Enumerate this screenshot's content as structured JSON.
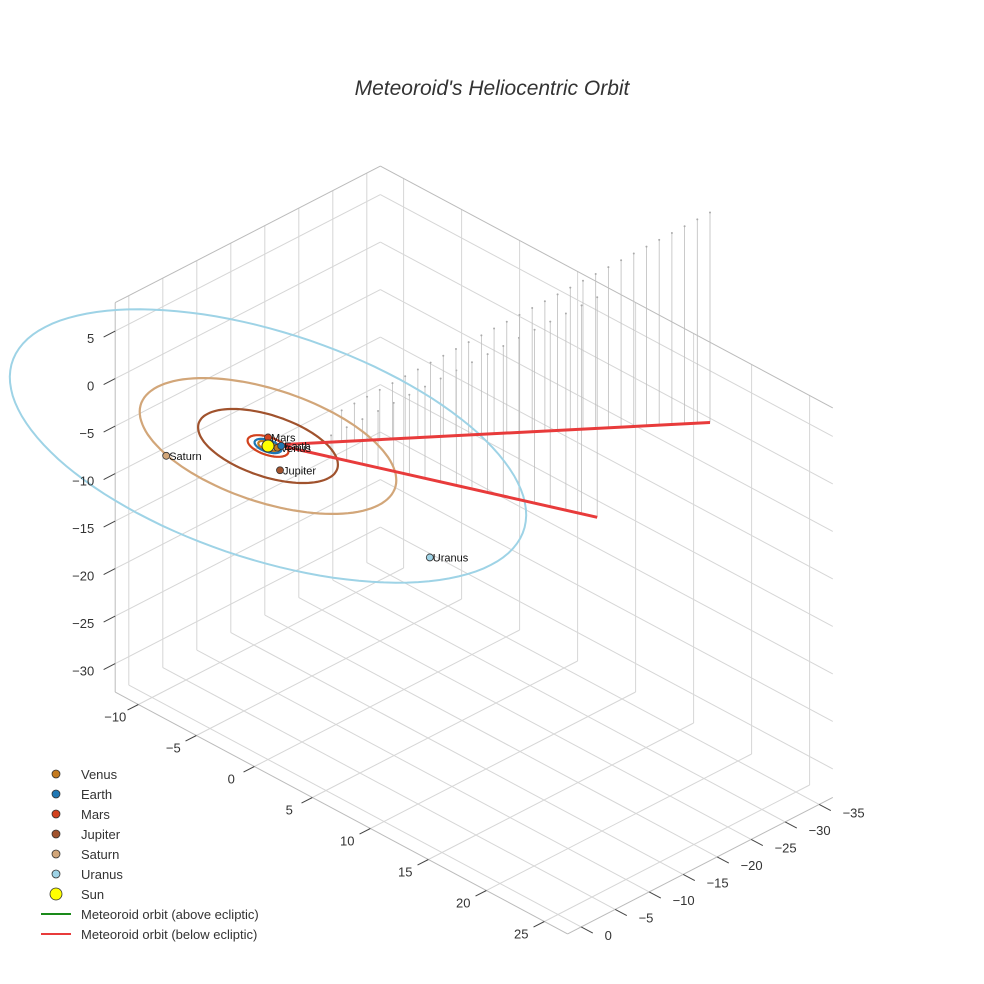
{
  "chart_data": {
    "type": "scatter3d",
    "title": "Meteoroid's Heliocentric Orbit",
    "axes": {
      "x": {
        "label": "",
        "range": [
          -12,
          27
        ],
        "ticks": [
          -10,
          -5,
          0,
          5,
          10,
          15,
          20,
          25
        ]
      },
      "y": {
        "label": "",
        "range": [
          -37,
          2
        ],
        "ticks": [
          -35,
          -30,
          -25,
          -20,
          -15,
          -10,
          -5,
          0
        ]
      },
      "z": {
        "label": "",
        "range": [
          -33,
          8
        ],
        "ticks": [
          5,
          0,
          -5,
          -10,
          -15,
          -20,
          -25,
          -30
        ]
      }
    },
    "legend_position": "bottom-left",
    "bodies": [
      {
        "name": "Venus",
        "label": "Venus",
        "color": "#c47a1e",
        "orbit_radius_au": 0.72
      },
      {
        "name": "Earth",
        "label": "Earth",
        "color": "#1f77b4",
        "orbit_radius_au": 1.0
      },
      {
        "name": "Mars",
        "label": "Mars",
        "color": "#d2421e",
        "orbit_radius_au": 1.52
      },
      {
        "name": "Jupiter",
        "label": "Jupiter",
        "color": "#a0522d",
        "orbit_radius_au": 5.2
      },
      {
        "name": "Saturn",
        "label": "Saturn",
        "color": "#d2a679",
        "orbit_radius_au": 9.54
      },
      {
        "name": "Uranus",
        "label": "Uranus",
        "color": "#9ed3e6",
        "orbit_radius_au": 19.2
      }
    ],
    "sun": {
      "name": "Sun",
      "color": "#ffff00"
    },
    "series": [
      {
        "name": "Meteoroid orbit (above ecliptic)",
        "color": "#1a8a1a"
      },
      {
        "name": "Meteoroid orbit (below ecliptic)",
        "color": "#e83b3b"
      }
    ]
  }
}
